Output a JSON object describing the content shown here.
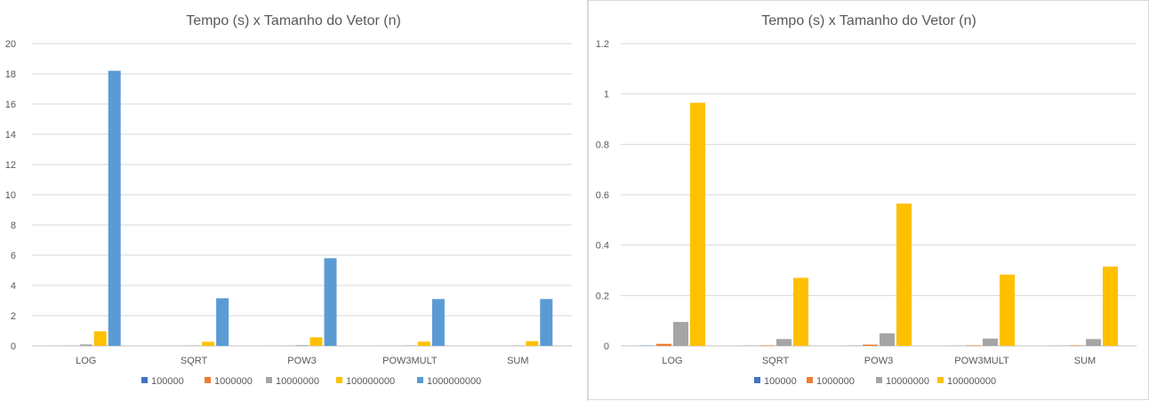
{
  "chart_data": [
    {
      "type": "bar",
      "title": "Tempo (s) x Tamanho do Vetor (n)",
      "xlabel": "",
      "ylabel": "",
      "categories": [
        "LOG",
        "SQRT",
        "POW3",
        "POW3MULT",
        "SUM"
      ],
      "ylim": [
        0,
        20
      ],
      "yticks": [
        "0",
        "2",
        "4",
        "6",
        "8",
        "10",
        "12",
        "14",
        "16",
        "18",
        "20"
      ],
      "ytick_values": [
        0,
        2,
        4,
        6,
        8,
        10,
        12,
        14,
        16,
        18,
        20
      ],
      "grid": true,
      "legend_position": "bottom",
      "series": [
        {
          "name": "100000",
          "color": "#4472c4",
          "values": [
            0.001,
            0.0005,
            0.0005,
            0.0003,
            0.0003
          ]
        },
        {
          "name": "1000000",
          "color": "#ed7d31",
          "values": [
            0.008,
            0.002,
            0.005,
            0.002,
            0.002
          ]
        },
        {
          "name": "10000000",
          "color": "#a5a5a5",
          "values": [
            0.095,
            0.027,
            0.05,
            0.029,
            0.027
          ]
        },
        {
          "name": "100000000",
          "color": "#ffc000",
          "values": [
            0.965,
            0.27,
            0.565,
            0.283,
            0.315
          ]
        },
        {
          "name": "1000000000",
          "color": "#5b9bd5",
          "values": [
            18.2,
            3.15,
            5.8,
            3.1,
            3.1
          ]
        }
      ]
    },
    {
      "type": "bar",
      "title": "Tempo (s) x Tamanho do Vetor (n)",
      "xlabel": "",
      "ylabel": "",
      "categories": [
        "LOG",
        "SQRT",
        "POW3",
        "POW3MULT",
        "SUM"
      ],
      "ylim": [
        0,
        1.2
      ],
      "yticks": [
        "0",
        "0.2",
        "0.4",
        "0.6",
        "0.8",
        "1",
        "1.2"
      ],
      "ytick_values": [
        0,
        0.2,
        0.4,
        0.6,
        0.8,
        1,
        1.2
      ],
      "grid": true,
      "legend_position": "bottom",
      "series": [
        {
          "name": "100000",
          "color": "#4472c4",
          "values": [
            0.001,
            0.0005,
            0.0005,
            0.0003,
            0.0003
          ]
        },
        {
          "name": "1000000",
          "color": "#ed7d31",
          "values": [
            0.008,
            0.002,
            0.005,
            0.002,
            0.002
          ]
        },
        {
          "name": "10000000",
          "color": "#a5a5a5",
          "values": [
            0.095,
            0.027,
            0.05,
            0.029,
            0.027
          ]
        },
        {
          "name": "100000000",
          "color": "#ffc000",
          "values": [
            0.965,
            0.27,
            0.565,
            0.283,
            0.315
          ]
        }
      ]
    }
  ]
}
